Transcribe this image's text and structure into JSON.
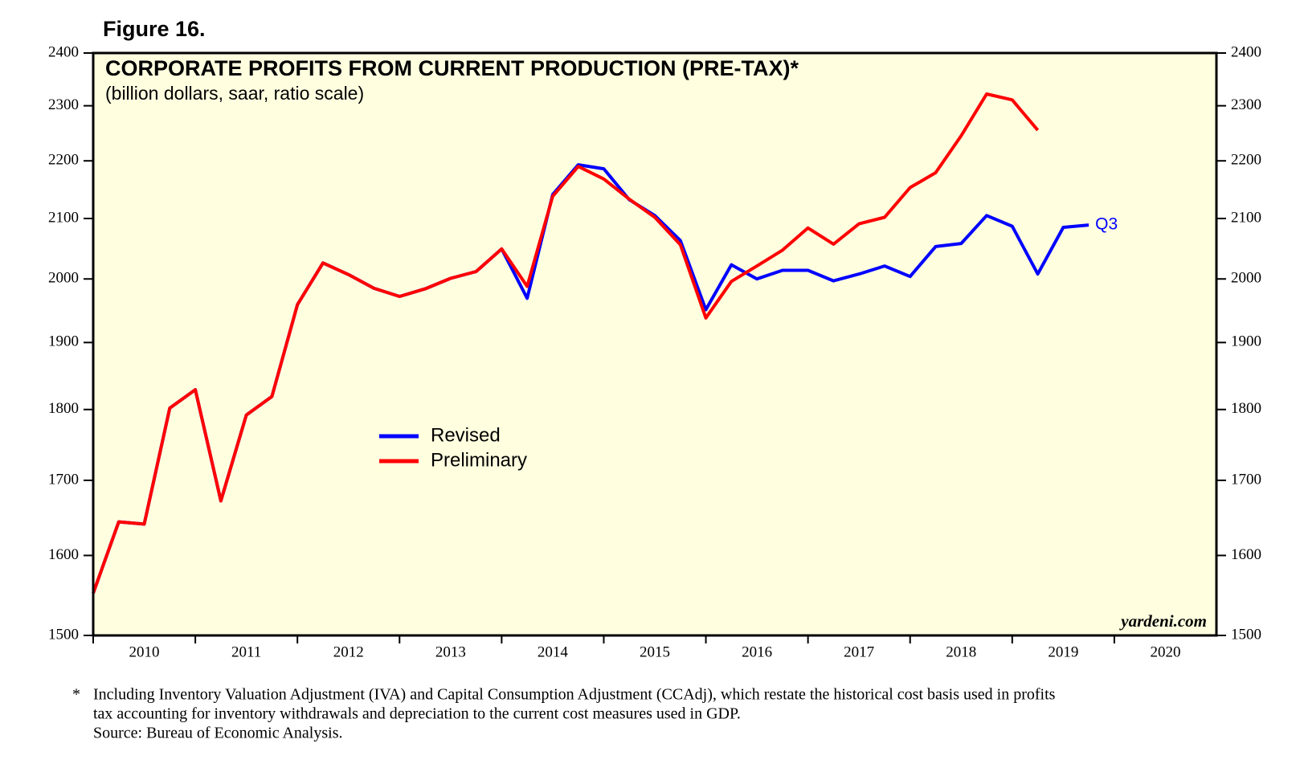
{
  "chart_data": {
    "type": "line",
    "figure_label": "Figure 16.",
    "title": "CORPORATE PROFITS FROM CURRENT PRODUCTION (PRE-TAX)*",
    "subtitle": "(billion dollars, saar, ratio scale)",
    "annotation": "Q3",
    "watermark": "yardeni.com",
    "footnote_marker": "*",
    "footnote": [
      "Including Inventory Valuation Adjustment (IVA) and Capital Consumption Adjustment (CCAdj), which restate the historical cost basis used in profits",
      "tax accounting for inventory withdrawals and depreciation to the current cost measures used in GDP.",
      "Source: Bureau of Economic Analysis."
    ],
    "yscale": "log",
    "background": "#ffffe0",
    "x": [
      2010,
      2010.25,
      2010.5,
      2010.75,
      2011,
      2011.25,
      2011.5,
      2011.75,
      2012,
      2012.25,
      2012.5,
      2012.75,
      2013,
      2013.25,
      2013.5,
      2013.75,
      2014,
      2014.25,
      2014.5,
      2014.75,
      2015,
      2015.25,
      2015.5,
      2015.75,
      2016,
      2016.25,
      2016.5,
      2016.75,
      2017,
      2017.25,
      2017.5,
      2017.75,
      2018,
      2018.25,
      2018.5,
      2018.75,
      2019,
      2019.25,
      2019.5,
      2019.75
    ],
    "series": [
      {
        "name": "Revised",
        "color": "#0000ff",
        "values": [
          1552,
          1644,
          1641,
          1802,
          1829,
          1672,
          1792,
          1819,
          1959,
          2026,
          2007,
          1985,
          1972,
          1984,
          2001,
          2012,
          2049,
          1969,
          2141,
          2193,
          2186,
          2132,
          2105,
          2063,
          1951,
          2023,
          2000,
          2014,
          2014,
          1997,
          2008,
          2021,
          2004,
          2053,
          2058,
          2105,
          2087,
          2008,
          2085,
          2089
        ]
      },
      {
        "name": "Preliminary",
        "color": "#ff0000",
        "values": [
          1552,
          1644,
          1641,
          1802,
          1829,
          1672,
          1792,
          1819,
          1959,
          2026,
          2007,
          1985,
          1972,
          1984,
          2001,
          2012,
          2049,
          1988,
          2138,
          2190,
          2168,
          2133,
          2102,
          2056,
          1938,
          1996,
          2021,
          2047,
          2084,
          2057,
          2091,
          2102,
          2153,
          2179,
          2245,
          2322,
          2311,
          2255,
          null,
          null
        ]
      }
    ],
    "xlim": [
      2010,
      2021
    ],
    "xticks": [
      2010,
      2011,
      2012,
      2013,
      2014,
      2015,
      2016,
      2017,
      2018,
      2019,
      2020
    ],
    "ylim": [
      1500,
      2400
    ],
    "yticks": [
      1500,
      1600,
      1700,
      1800,
      1900,
      2000,
      2100,
      2200,
      2300,
      2400
    ]
  }
}
